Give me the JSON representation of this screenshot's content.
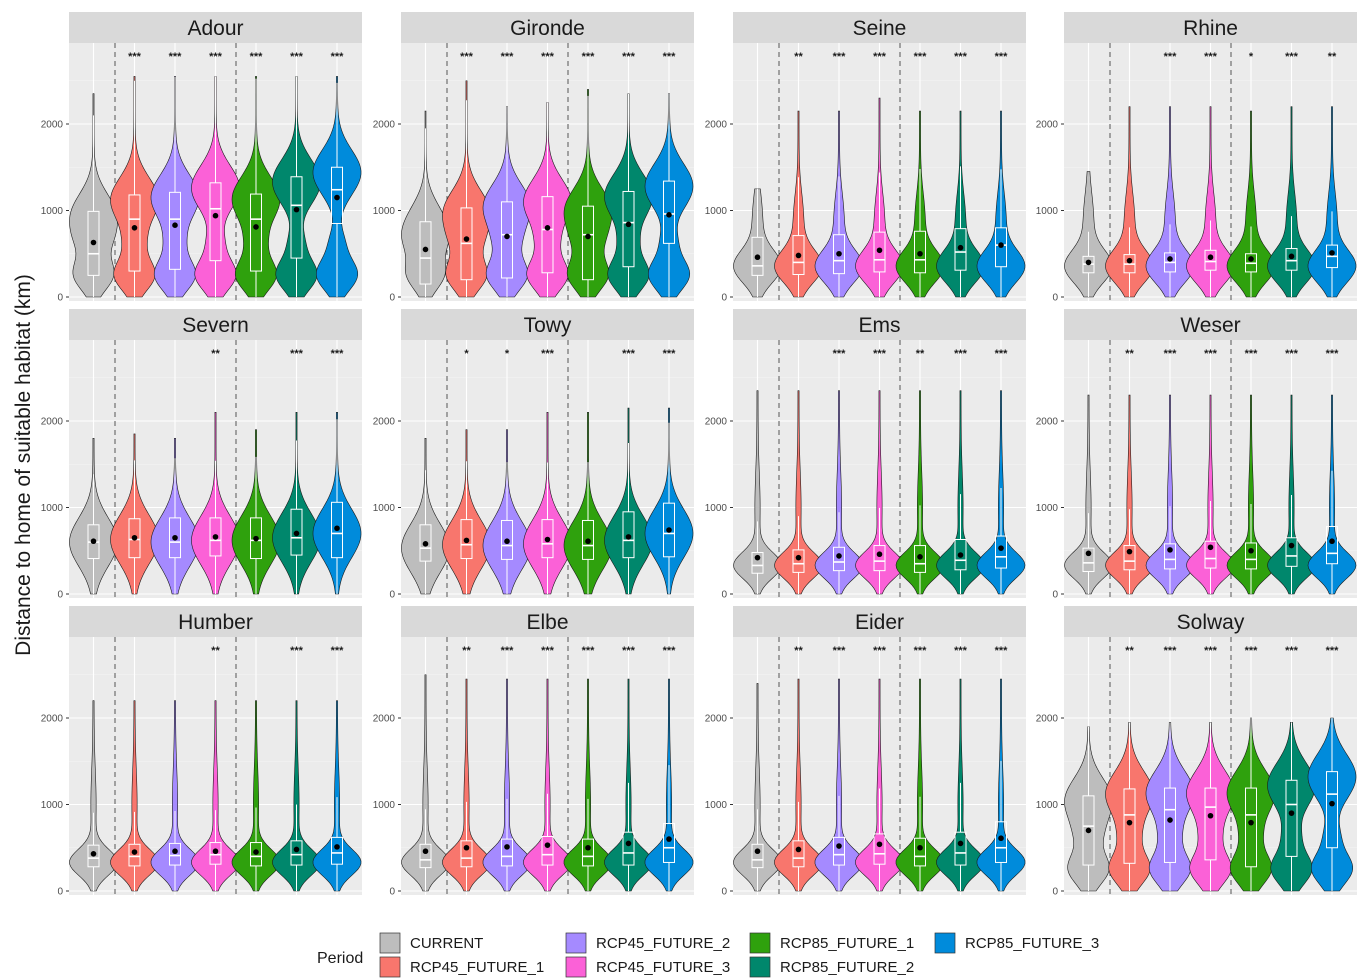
{
  "chart_data": {
    "type": "violin",
    "ylabel": "Distance to home of suitable habitat (km)",
    "ylim": [
      0,
      2500
    ],
    "yticks": [
      0,
      1000,
      2000
    ],
    "legend_title": "Period",
    "legend_placement": "bottom",
    "grid": true,
    "series": [
      {
        "name": "CURRENT",
        "color": "#BDBDBD"
      },
      {
        "name": "RCP45_FUTURE_1",
        "color": "#F8766D"
      },
      {
        "name": "RCP45_FUTURE_2",
        "color": "#A58AFF"
      },
      {
        "name": "RCP45_FUTURE_3",
        "color": "#FB61D7"
      },
      {
        "name": "RCP85_FUTURE_1",
        "color": "#2FA10D"
      },
      {
        "name": "RCP85_FUTURE_2",
        "color": "#00876C"
      },
      {
        "name": "RCP85_FUTURE_3",
        "color": "#008BDB"
      }
    ],
    "panels": [
      {
        "name": "Adour",
        "shape": "bimodal",
        "max": [
          2350,
          2550,
          2550,
          2550,
          2550,
          2550,
          2550
        ],
        "mean": [
          630,
          800,
          830,
          940,
          810,
          1010,
          1150
        ],
        "median": [
          500,
          900,
          900,
          1020,
          900,
          1060,
          1240
        ],
        "q1": [
          250,
          300,
          320,
          420,
          300,
          450,
          850
        ],
        "q3": [
          990,
          1180,
          1210,
          1320,
          1190,
          1390,
          1500
        ],
        "sig": [
          "",
          "***",
          "***",
          "***",
          "***",
          "***",
          "***"
        ]
      },
      {
        "name": "Gironde",
        "shape": "bimodal",
        "max": [
          2150,
          2500,
          2200,
          2250,
          2400,
          2350,
          2350
        ],
        "mean": [
          550,
          670,
          700,
          800,
          700,
          840,
          950
        ],
        "median": [
          450,
          620,
          720,
          780,
          720,
          860,
          960
        ],
        "q1": [
          150,
          200,
          220,
          280,
          200,
          350,
          620
        ],
        "q3": [
          870,
          1030,
          1100,
          1160,
          1050,
          1220,
          1340
        ],
        "sig": [
          "",
          "***",
          "***",
          "***",
          "***",
          "***",
          "***"
        ]
      },
      {
        "name": "Seine",
        "shape": "lower",
        "max": [
          1250,
          2150,
          2150,
          2300,
          2150,
          2150,
          2150
        ],
        "mean": [
          460,
          480,
          500,
          540,
          500,
          570,
          600
        ],
        "median": [
          360,
          400,
          420,
          430,
          430,
          520,
          600
        ],
        "q1": [
          250,
          260,
          270,
          290,
          280,
          310,
          350
        ],
        "q3": [
          690,
          710,
          720,
          750,
          760,
          790,
          800
        ],
        "sig": [
          "",
          "**",
          "***",
          "***",
          "***",
          "***",
          "***"
        ]
      },
      {
        "name": "Rhine",
        "shape": "lower",
        "max": [
          1450,
          2200,
          2200,
          2200,
          2150,
          2200,
          2200
        ],
        "mean": [
          400,
          420,
          440,
          460,
          440,
          470,
          510
        ],
        "median": [
          380,
          380,
          400,
          410,
          390,
          420,
          470
        ],
        "q1": [
          280,
          280,
          290,
          310,
          290,
          310,
          340
        ],
        "q3": [
          470,
          490,
          510,
          540,
          500,
          560,
          600
        ],
        "sig": [
          "",
          "",
          "***",
          "***",
          "*",
          "***",
          "**"
        ]
      },
      {
        "name": "Severn",
        "shape": "mid",
        "max": [
          1800,
          1850,
          1800,
          2100,
          1900,
          2100,
          2100
        ],
        "mean": [
          610,
          650,
          650,
          660,
          640,
          700,
          760
        ],
        "median": [
          600,
          630,
          600,
          620,
          620,
          650,
          700
        ],
        "q1": [
          410,
          420,
          420,
          440,
          410,
          450,
          420
        ],
        "q3": [
          800,
          870,
          880,
          880,
          880,
          980,
          1060
        ],
        "sig": [
          "",
          "",
          "",
          "**",
          "",
          "***",
          "***"
        ]
      },
      {
        "name": "Towy",
        "shape": "mid",
        "max": [
          1800,
          1900,
          1900,
          2100,
          2100,
          2150,
          2150
        ],
        "mean": [
          580,
          620,
          610,
          630,
          610,
          660,
          740
        ],
        "median": [
          530,
          570,
          560,
          580,
          560,
          620,
          700
        ],
        "q1": [
          380,
          410,
          400,
          420,
          400,
          420,
          430
        ],
        "q3": [
          800,
          860,
          850,
          860,
          850,
          950,
          1050
        ],
        "sig": [
          "",
          "*",
          "*",
          "***",
          "",
          "***",
          "***"
        ]
      },
      {
        "name": "Ems",
        "shape": "lowtail",
        "max": [
          2350,
          2350,
          2350,
          2350,
          2350,
          2350,
          2350
        ],
        "mean": [
          420,
          420,
          440,
          460,
          430,
          450,
          530
        ],
        "median": [
          330,
          350,
          370,
          380,
          350,
          390,
          430
        ],
        "q1": [
          240,
          250,
          270,
          270,
          250,
          280,
          300
        ],
        "q3": [
          480,
          510,
          540,
          560,
          560,
          630,
          670
        ],
        "sig": [
          "",
          "",
          "***",
          "***",
          "**",
          "***",
          "***"
        ]
      },
      {
        "name": "Weser",
        "shape": "lowtail",
        "max": [
          2300,
          2300,
          2300,
          2300,
          2300,
          2300,
          2300
        ],
        "mean": [
          470,
          490,
          510,
          540,
          500,
          560,
          610
        ],
        "median": [
          360,
          380,
          400,
          410,
          400,
          440,
          470
        ],
        "q1": [
          260,
          280,
          290,
          300,
          290,
          320,
          350
        ],
        "q3": [
          530,
          560,
          580,
          610,
          590,
          650,
          780
        ],
        "sig": [
          "",
          "**",
          "***",
          "***",
          "***",
          "***",
          "***"
        ]
      },
      {
        "name": "Humber",
        "shape": "lowtail",
        "max": [
          2200,
          2200,
          2200,
          2200,
          2200,
          2200,
          2200
        ],
        "mean": [
          430,
          450,
          460,
          460,
          450,
          480,
          510
        ],
        "median": [
          380,
          400,
          410,
          420,
          400,
          420,
          440
        ],
        "q1": [
          280,
          290,
          300,
          310,
          290,
          300,
          310
        ],
        "q3": [
          530,
          540,
          550,
          560,
          560,
          580,
          620
        ],
        "sig": [
          "",
          "",
          "",
          "**",
          "",
          "***",
          "***"
        ]
      },
      {
        "name": "Elbe",
        "shape": "lowtail",
        "max": [
          2500,
          2450,
          2450,
          2450,
          2450,
          2450,
          2450
        ],
        "mean": [
          460,
          500,
          510,
          530,
          500,
          550,
          600
        ],
        "median": [
          360,
          380,
          400,
          420,
          400,
          440,
          500
        ],
        "q1": [
          270,
          280,
          290,
          300,
          290,
          300,
          330
        ],
        "q3": [
          540,
          580,
          600,
          630,
          600,
          680,
          780
        ],
        "sig": [
          "",
          "**",
          "***",
          "***",
          "***",
          "***",
          "***"
        ]
      },
      {
        "name": "Eider",
        "shape": "lowtail",
        "max": [
          2400,
          2450,
          2450,
          2450,
          2450,
          2450,
          2450
        ],
        "mean": [
          460,
          480,
          520,
          540,
          500,
          550,
          610
        ],
        "median": [
          360,
          380,
          420,
          430,
          400,
          440,
          500
        ],
        "q1": [
          270,
          280,
          300,
          310,
          290,
          300,
          330
        ],
        "q3": [
          540,
          580,
          620,
          660,
          610,
          680,
          800
        ],
        "sig": [
          "",
          "**",
          "***",
          "***",
          "***",
          "***",
          "***"
        ]
      },
      {
        "name": "Solway",
        "shape": "bimodal",
        "max": [
          1900,
          1950,
          1950,
          1950,
          2000,
          1950,
          2000
        ],
        "mean": [
          700,
          790,
          820,
          870,
          790,
          900,
          1010
        ],
        "median": [
          750,
          880,
          940,
          970,
          880,
          1000,
          1120
        ],
        "q1": [
          300,
          320,
          330,
          360,
          280,
          400,
          500
        ],
        "q3": [
          1100,
          1180,
          1190,
          1190,
          1190,
          1280,
          1380
        ],
        "sig": [
          "",
          "**",
          "***",
          "***",
          "***",
          "***",
          "***"
        ]
      }
    ]
  }
}
